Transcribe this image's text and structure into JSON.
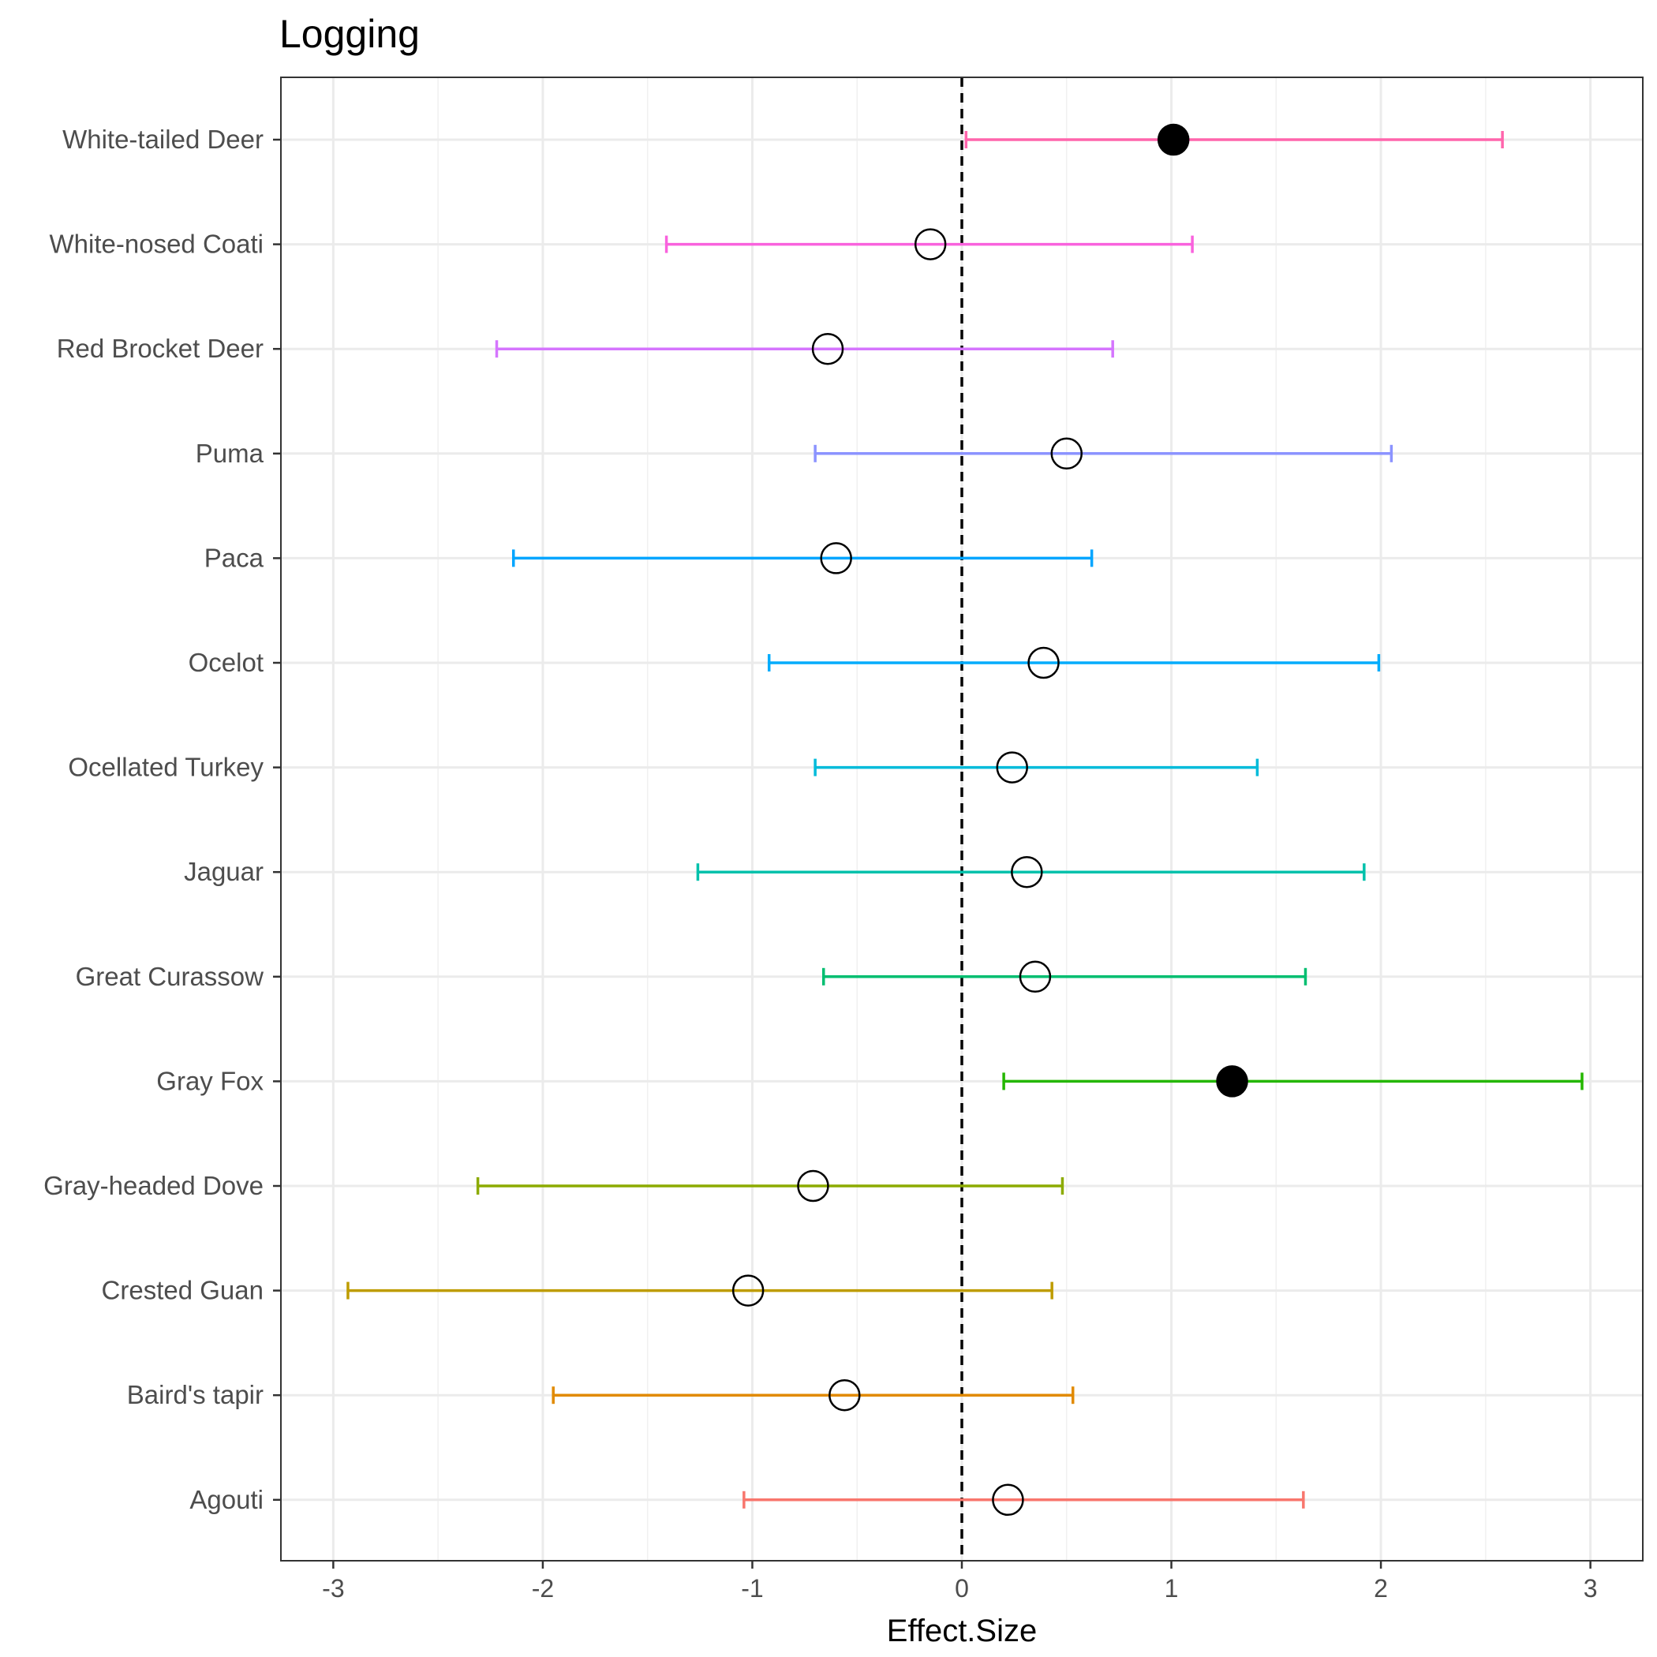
{
  "chart_data": {
    "type": "scatter",
    "title": "Logging",
    "xlabel": "Effect.Size",
    "ylabel": "",
    "xlim": [
      -3.25,
      3.25
    ],
    "x_ticks": [
      -3,
      -2,
      -1,
      0,
      1,
      2,
      3
    ],
    "x_tick_labels": [
      "-3",
      "-2",
      "-1",
      "0",
      "1",
      "2",
      "3"
    ],
    "reference_line": {
      "x": 0,
      "style": "dashed",
      "color": "#000000"
    },
    "grid": true,
    "legend": "none",
    "series": [
      {
        "name": "Agouti",
        "estimate": 0.22,
        "lower": -1.04,
        "upper": 1.63,
        "significant": false,
        "color": "#F8766D"
      },
      {
        "name": "Baird's tapir",
        "estimate": -0.56,
        "lower": -1.95,
        "upper": 0.53,
        "significant": false,
        "color": "#E18A00"
      },
      {
        "name": "Crested Guan",
        "estimate": -1.02,
        "lower": -2.93,
        "upper": 0.43,
        "significant": false,
        "color": "#BE9C00"
      },
      {
        "name": "Gray-headed Dove",
        "estimate": -0.71,
        "lower": -2.31,
        "upper": 0.48,
        "significant": false,
        "color": "#8CAB00"
      },
      {
        "name": "Gray Fox",
        "estimate": 1.29,
        "lower": 0.2,
        "upper": 2.96,
        "significant": true,
        "color": "#24B700"
      },
      {
        "name": "Great Curassow",
        "estimate": 0.35,
        "lower": -0.66,
        "upper": 1.64,
        "significant": false,
        "color": "#00BE70"
      },
      {
        "name": "Jaguar",
        "estimate": 0.31,
        "lower": -1.26,
        "upper": 1.92,
        "significant": false,
        "color": "#00C1AB"
      },
      {
        "name": "Ocellated Turkey",
        "estimate": 0.24,
        "lower": -0.7,
        "upper": 1.41,
        "significant": false,
        "color": "#00BBDA"
      },
      {
        "name": "Ocelot",
        "estimate": 0.39,
        "lower": -0.92,
        "upper": 1.99,
        "significant": false,
        "color": "#00ACFC"
      },
      {
        "name": "Paca",
        "estimate": -0.6,
        "lower": -2.14,
        "upper": 0.62,
        "significant": false,
        "color": "#00A5FF"
      },
      {
        "name": "Puma",
        "estimate": 0.5,
        "lower": -0.7,
        "upper": 2.05,
        "significant": false,
        "color": "#8B93FF"
      },
      {
        "name": "Red Brocket Deer",
        "estimate": -0.64,
        "lower": -2.22,
        "upper": 0.72,
        "significant": false,
        "color": "#D575FE"
      },
      {
        "name": "White-nosed Coati",
        "estimate": -0.15,
        "lower": -1.41,
        "upper": 1.1,
        "significant": false,
        "color": "#F962DD"
      },
      {
        "name": "White-tailed Deer",
        "estimate": 1.01,
        "lower": 0.02,
        "upper": 2.58,
        "significant": true,
        "color": "#FF65AC"
      }
    ]
  }
}
